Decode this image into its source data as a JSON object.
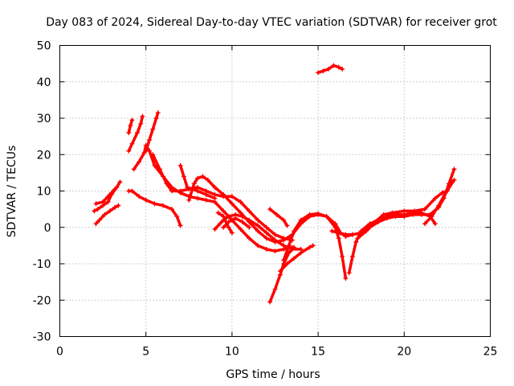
{
  "chart_data": {
    "type": "scatter",
    "title": "Day 083 of 2024, Sidereal Day-to-day VTEC variation (SDTVAR) for receiver grot",
    "xlabel": "GPS time / hours",
    "ylabel": "SDTVAR / TECUs",
    "xlim": [
      0,
      25
    ],
    "ylim": [
      -30,
      50
    ],
    "xticks": [
      0,
      5,
      10,
      15,
      20,
      25
    ],
    "yticks": [
      -30,
      -20,
      -10,
      0,
      10,
      20,
      30,
      40,
      50
    ],
    "grid": true,
    "marker": "+",
    "color": "#ff0000",
    "series": [
      {
        "points": [
          [
            2.0,
            4.5
          ],
          [
            2.2,
            5.0
          ],
          [
            2.5,
            6.0
          ],
          [
            2.8,
            7.0
          ],
          [
            3.0,
            9.0
          ],
          [
            3.3,
            11.0
          ],
          [
            3.5,
            12.5
          ]
        ]
      },
      {
        "points": [
          [
            2.1,
            1.0
          ],
          [
            2.3,
            2.0
          ],
          [
            2.6,
            3.5
          ],
          [
            2.9,
            4.5
          ],
          [
            3.2,
            5.5
          ],
          [
            3.4,
            6.0
          ]
        ]
      },
      {
        "points": [
          [
            2.1,
            6.5
          ],
          [
            2.5,
            7.0
          ],
          [
            2.8,
            8.5
          ],
          [
            3.0,
            9.5
          ],
          [
            3.2,
            10.5
          ]
        ]
      },
      {
        "points": [
          [
            4.0,
            21.0
          ],
          [
            4.2,
            23.0
          ],
          [
            4.5,
            26.0
          ],
          [
            4.7,
            28.5
          ],
          [
            4.8,
            30.5
          ]
        ]
      },
      {
        "points": [
          [
            4.0,
            26.0
          ],
          [
            4.1,
            28.0
          ],
          [
            4.2,
            29.5
          ]
        ]
      },
      {
        "points": [
          [
            4.0,
            10.0
          ],
          [
            4.2,
            10.0
          ],
          [
            4.6,
            8.5
          ],
          [
            5.0,
            7.5
          ],
          [
            5.5,
            6.5
          ],
          [
            6.0,
            6.0
          ],
          [
            6.5,
            5.0
          ],
          [
            6.8,
            3.0
          ],
          [
            7.0,
            0.5
          ]
        ]
      },
      {
        "points": [
          [
            4.3,
            16.0
          ],
          [
            4.6,
            18.0
          ],
          [
            4.9,
            20.5
          ],
          [
            5.0,
            22.5
          ],
          [
            5.2,
            21.0
          ],
          [
            5.5,
            17.0
          ],
          [
            6.0,
            14.0
          ],
          [
            6.5,
            11.0
          ],
          [
            7.0,
            9.5
          ],
          [
            7.5,
            8.5
          ],
          [
            8.0,
            8.0
          ],
          [
            8.5,
            7.5
          ],
          [
            9.0,
            7.0
          ],
          [
            9.5,
            4.5
          ],
          [
            10.0,
            2.0
          ],
          [
            10.5,
            -0.5
          ],
          [
            11.0,
            -3.0
          ],
          [
            11.5,
            -5.0
          ],
          [
            12.0,
            -6.0
          ],
          [
            12.5,
            -6.5
          ],
          [
            13.0,
            -6.0
          ],
          [
            13.5,
            -5.5
          ]
        ]
      },
      {
        "points": [
          [
            5.0,
            21.0
          ],
          [
            5.2,
            24.0
          ],
          [
            5.4,
            27.0
          ],
          [
            5.6,
            30.0
          ],
          [
            5.7,
            31.5
          ]
        ]
      },
      {
        "points": [
          [
            5.4,
            20.0
          ],
          [
            5.8,
            16.0
          ],
          [
            6.2,
            12.0
          ],
          [
            6.5,
            10.0
          ],
          [
            7.0,
            10.0
          ],
          [
            7.5,
            10.5
          ],
          [
            8.0,
            11.0
          ],
          [
            8.5,
            10.0
          ],
          [
            9.0,
            9.0
          ],
          [
            9.5,
            8.5
          ],
          [
            10.0,
            8.5
          ],
          [
            10.5,
            7.0
          ],
          [
            11.0,
            4.5
          ],
          [
            11.5,
            2.0
          ],
          [
            12.0,
            0.0
          ],
          [
            12.5,
            -2.0
          ],
          [
            13.0,
            -3.0
          ],
          [
            13.5,
            -3.5
          ]
        ]
      },
      {
        "points": [
          [
            7.0,
            17.0
          ],
          [
            7.2,
            14.0
          ],
          [
            7.4,
            11.0
          ],
          [
            7.7,
            10.5
          ],
          [
            8.0,
            10.0
          ],
          [
            8.5,
            9.0
          ],
          [
            9.0,
            8.0
          ]
        ]
      },
      {
        "points": [
          [
            7.5,
            7.5
          ],
          [
            7.8,
            12.0
          ],
          [
            8.0,
            13.5
          ],
          [
            8.3,
            14.0
          ],
          [
            8.6,
            13.0
          ],
          [
            9.0,
            11.0
          ],
          [
            9.5,
            9.0
          ],
          [
            10.0,
            6.5
          ],
          [
            10.5,
            4.0
          ],
          [
            11.0,
            1.5
          ],
          [
            11.5,
            -1.0
          ],
          [
            12.0,
            -3.0
          ],
          [
            12.5,
            -4.0
          ],
          [
            13.0,
            -3.5
          ],
          [
            13.5,
            -2.0
          ],
          [
            14.0,
            1.0
          ],
          [
            14.5,
            3.0
          ],
          [
            15.0,
            3.5
          ],
          [
            15.5,
            3.0
          ],
          [
            16.0,
            1.0
          ],
          [
            16.3,
            -1.5
          ],
          [
            16.6,
            -2.5
          ],
          [
            17.0,
            -2.0
          ]
        ]
      },
      {
        "points": [
          [
            9.0,
            -0.5
          ],
          [
            9.3,
            1.0
          ],
          [
            9.5,
            2.0
          ],
          [
            9.8,
            3.0
          ],
          [
            10.2,
            3.5
          ],
          [
            10.6,
            3.0
          ],
          [
            11.0,
            2.0
          ],
          [
            11.5,
            0.5
          ],
          [
            12.0,
            -1.5
          ],
          [
            12.5,
            -3.5
          ],
          [
            13.0,
            -5.0
          ],
          [
            13.5,
            -6.0
          ],
          [
            14.0,
            -6.0
          ]
        ]
      },
      {
        "points": [
          [
            9.5,
            0.0
          ],
          [
            9.8,
            1.5
          ],
          [
            10.2,
            2.5
          ],
          [
            10.6,
            1.5
          ],
          [
            11.0,
            0.0
          ]
        ]
      },
      {
        "points": [
          [
            9.2,
            4.0
          ],
          [
            9.5,
            3.0
          ],
          [
            9.8,
            0.0
          ],
          [
            10.0,
            -1.5
          ]
        ]
      },
      {
        "points": [
          [
            12.2,
            -20.5
          ],
          [
            12.5,
            -17.0
          ],
          [
            12.8,
            -13.0
          ],
          [
            13.0,
            -10.0
          ],
          [
            13.3,
            -7.0
          ],
          [
            13.6,
            -5.5
          ]
        ]
      },
      {
        "points": [
          [
            12.8,
            -12.0
          ],
          [
            13.2,
            -10.0
          ],
          [
            13.6,
            -8.5
          ],
          [
            14.0,
            -7.0
          ],
          [
            14.5,
            -5.5
          ],
          [
            14.7,
            -5.0
          ]
        ]
      },
      {
        "points": [
          [
            12.2,
            5.0
          ],
          [
            12.6,
            3.5
          ],
          [
            13.0,
            2.0
          ],
          [
            13.2,
            0.5
          ]
        ]
      },
      {
        "points": [
          [
            13.0,
            -9.0
          ],
          [
            13.3,
            -5.0
          ],
          [
            13.6,
            -1.0
          ],
          [
            14.0,
            2.0
          ],
          [
            14.5,
            3.5
          ],
          [
            15.0,
            3.8
          ],
          [
            15.5,
            3.0
          ],
          [
            16.0,
            0.0
          ],
          [
            16.2,
            -3.0
          ],
          [
            16.4,
            -8.0
          ],
          [
            16.6,
            -14.0
          ]
        ]
      },
      {
        "points": [
          [
            15.8,
            -1.0
          ],
          [
            16.2,
            -1.5
          ],
          [
            16.6,
            -2.0
          ],
          [
            17.0,
            -2.0
          ],
          [
            17.5,
            -1.5
          ],
          [
            18.0,
            0.0
          ],
          [
            18.5,
            1.5
          ],
          [
            19.0,
            2.5
          ],
          [
            19.5,
            3.0
          ],
          [
            20.0,
            3.0
          ],
          [
            20.5,
            3.5
          ],
          [
            21.0,
            3.5
          ],
          [
            21.5,
            3.5
          ],
          [
            22.0,
            5.5
          ],
          [
            22.3,
            8.0
          ],
          [
            22.6,
            12.0
          ],
          [
            22.9,
            16.0
          ]
        ]
      },
      {
        "points": [
          [
            16.8,
            -12.5
          ],
          [
            17.0,
            -8.0
          ],
          [
            17.2,
            -4.0
          ],
          [
            17.5,
            -1.0
          ],
          [
            18.0,
            1.0
          ],
          [
            18.5,
            2.0
          ],
          [
            19.0,
            3.0
          ],
          [
            19.5,
            3.5
          ],
          [
            20.0,
            3.5
          ],
          [
            20.5,
            4.0
          ],
          [
            21.0,
            4.0
          ],
          [
            21.5,
            3.0
          ],
          [
            21.8,
            1.0
          ]
        ]
      },
      {
        "points": [
          [
            17.3,
            -3.0
          ],
          [
            17.8,
            -1.0
          ],
          [
            18.3,
            1.5
          ],
          [
            18.8,
            3.5
          ],
          [
            19.3,
            4.0
          ],
          [
            20.0,
            4.5
          ],
          [
            20.6,
            4.5
          ],
          [
            21.2,
            5.0
          ],
          [
            21.8,
            8.0
          ],
          [
            22.2,
            9.5
          ],
          [
            22.5,
            10.0
          ],
          [
            22.8,
            12.5
          ]
        ]
      },
      {
        "points": [
          [
            21.2,
            1.0
          ],
          [
            21.6,
            3.0
          ],
          [
            22.0,
            6.0
          ],
          [
            22.4,
            9.5
          ],
          [
            22.9,
            13.0
          ]
        ]
      },
      {
        "points": [
          [
            15.0,
            42.5
          ],
          [
            15.3,
            43.0
          ],
          [
            15.6,
            43.5
          ],
          [
            15.9,
            44.5
          ],
          [
            16.2,
            44.0
          ],
          [
            16.4,
            43.5
          ]
        ]
      }
    ]
  }
}
